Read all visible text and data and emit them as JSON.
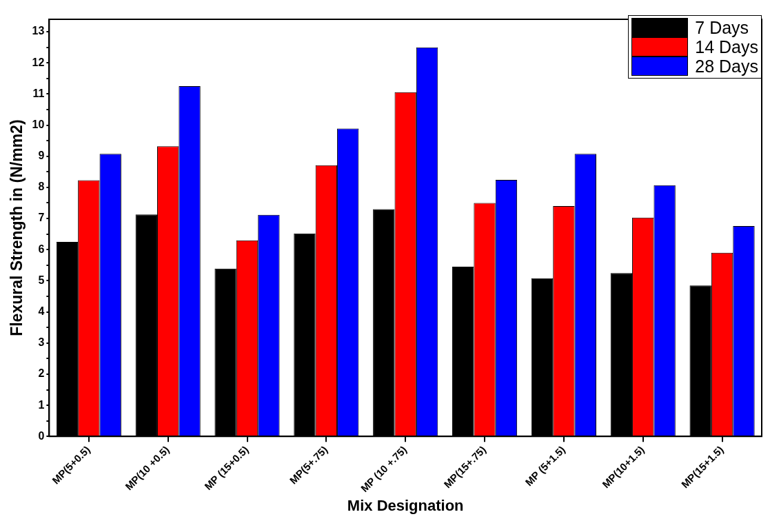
{
  "chart_data": {
    "type": "bar",
    "xlabel": "Mix Designation",
    "ylabel": "Flexural Strength in (N/mm2)",
    "categories": [
      "MP(5+0.5)",
      "MP(10 +0.5)",
      "MP (15+0.5)",
      "MP(5+.75)",
      "MP (10 +.75)",
      "MP(15+.75)",
      "MP (5+1.5)",
      "MP(10+1.5)",
      "MP(15+1.5)"
    ],
    "series": [
      {
        "name": "7 Days",
        "color": "#000000",
        "values": [
          6.25,
          7.13,
          5.39,
          6.52,
          7.3,
          5.45,
          5.08,
          5.25,
          4.85
        ]
      },
      {
        "name": "14 Days",
        "color": "#ff0000",
        "values": [
          8.23,
          9.32,
          6.3,
          8.71,
          11.06,
          7.5,
          7.4,
          7.03,
          5.9
        ]
      },
      {
        "name": "28 Days",
        "color": "#0000ff",
        "values": [
          9.08,
          11.25,
          7.12,
          9.89,
          12.5,
          8.24,
          9.08,
          8.07,
          6.76
        ]
      }
    ],
    "ylim": [
      0,
      13.4
    ],
    "yticks": [
      0,
      {
        "value": 0.5,
        "label": null
      },
      1,
      {
        "value": 1.5,
        "label": null
      },
      2,
      {
        "value": 2.5,
        "label": null
      },
      3,
      {
        "value": 3.5,
        "label": null
      },
      4,
      {
        "value": 4.5,
        "label": null
      },
      5,
      {
        "value": 5.5,
        "label": null
      },
      6,
      {
        "value": 6.5,
        "label": null
      },
      7,
      {
        "value": 7.5,
        "label": null
      },
      8,
      {
        "value": 8.5,
        "label": null
      },
      9,
      {
        "value": 9.5,
        "label": null
      },
      10,
      {
        "value": 10.5,
        "label": null
      },
      11,
      {
        "value": 11.5,
        "label": null
      },
      12,
      {
        "value": 12.5,
        "label": null
      },
      13
    ],
    "grid": false,
    "legend": "top right"
  }
}
